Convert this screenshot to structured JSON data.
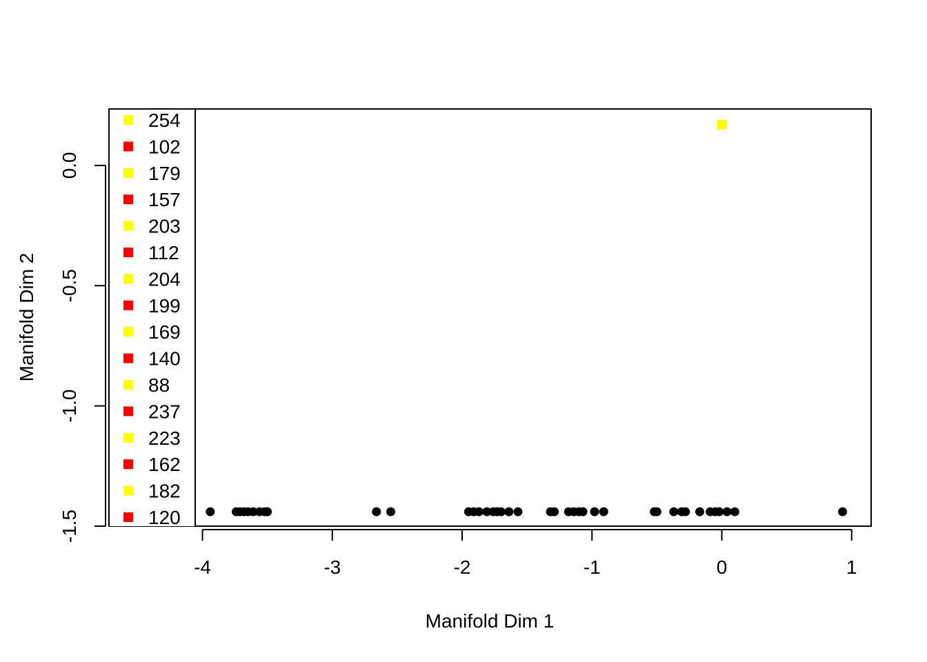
{
  "chart_data": {
    "type": "scatter",
    "xlabel": "Manifold Dim 1",
    "ylabel": "Manifold Dim 2",
    "xlim": [
      -4.72,
      1.15
    ],
    "ylim": [
      -1.5,
      0.235
    ],
    "x_ticks": [
      -4,
      -3,
      -2,
      -1,
      0,
      1
    ],
    "x_tick_labels": [
      "-4",
      "-3",
      "-2",
      "-1",
      "0",
      "1"
    ],
    "y_ticks": [
      -1.5,
      -1.0,
      -0.5,
      0.0
    ],
    "y_tick_labels": [
      "-1.5",
      "-1.0",
      "-0.5",
      "0.0"
    ],
    "grid": false,
    "legend_position": "top-left",
    "legend": [
      {
        "label": "254",
        "color": "#ffff00"
      },
      {
        "label": "102",
        "color": "#ff0000"
      },
      {
        "label": "179",
        "color": "#ffff00"
      },
      {
        "label": "157",
        "color": "#ff0000"
      },
      {
        "label": "203",
        "color": "#ffff00"
      },
      {
        "label": "112",
        "color": "#ff0000"
      },
      {
        "label": "204",
        "color": "#ffff00"
      },
      {
        "label": "199",
        "color": "#ff0000"
      },
      {
        "label": "169",
        "color": "#ffff00"
      },
      {
        "label": "140",
        "color": "#ff0000"
      },
      {
        "label": "88",
        "color": "#ffff00"
      },
      {
        "label": "237",
        "color": "#ff0000"
      },
      {
        "label": "223",
        "color": "#ffff00"
      },
      {
        "label": "162",
        "color": "#ff0000"
      },
      {
        "label": "182",
        "color": "#ffff00"
      },
      {
        "label": "120",
        "color": "#ff0000"
      }
    ],
    "series": [
      {
        "marker": "square",
        "color": "#ffff00",
        "points": [
          [
            0.0,
            0.17
          ]
        ]
      },
      {
        "marker": "circle",
        "color": "#000000",
        "points": [
          [
            -3.94,
            -1.44
          ],
          [
            -3.74,
            -1.44
          ],
          [
            -3.71,
            -1.44
          ],
          [
            -3.68,
            -1.44
          ],
          [
            -3.65,
            -1.44
          ],
          [
            -3.61,
            -1.44
          ],
          [
            -3.56,
            -1.44
          ],
          [
            -3.52,
            -1.44
          ],
          [
            -3.5,
            -1.44
          ],
          [
            -2.66,
            -1.44
          ],
          [
            -2.55,
            -1.44
          ],
          [
            -1.95,
            -1.44
          ],
          [
            -1.91,
            -1.44
          ],
          [
            -1.87,
            -1.44
          ],
          [
            -1.81,
            -1.44
          ],
          [
            -1.76,
            -1.44
          ],
          [
            -1.73,
            -1.44
          ],
          [
            -1.7,
            -1.44
          ],
          [
            -1.64,
            -1.44
          ],
          [
            -1.57,
            -1.44
          ],
          [
            -1.32,
            -1.44
          ],
          [
            -1.29,
            -1.44
          ],
          [
            -1.18,
            -1.44
          ],
          [
            -1.14,
            -1.44
          ],
          [
            -1.1,
            -1.44
          ],
          [
            -1.07,
            -1.44
          ],
          [
            -0.98,
            -1.44
          ],
          [
            -0.91,
            -1.44
          ],
          [
            -0.52,
            -1.44
          ],
          [
            -0.5,
            -1.44
          ],
          [
            -0.37,
            -1.44
          ],
          [
            -0.31,
            -1.44
          ],
          [
            -0.28,
            -1.44
          ],
          [
            -0.17,
            -1.44
          ],
          [
            -0.09,
            -1.44
          ],
          [
            -0.05,
            -1.44
          ],
          [
            -0.02,
            -1.44
          ],
          [
            0.04,
            -1.44
          ],
          [
            0.1,
            -1.44
          ],
          [
            0.93,
            -1.44
          ]
        ]
      }
    ]
  }
}
